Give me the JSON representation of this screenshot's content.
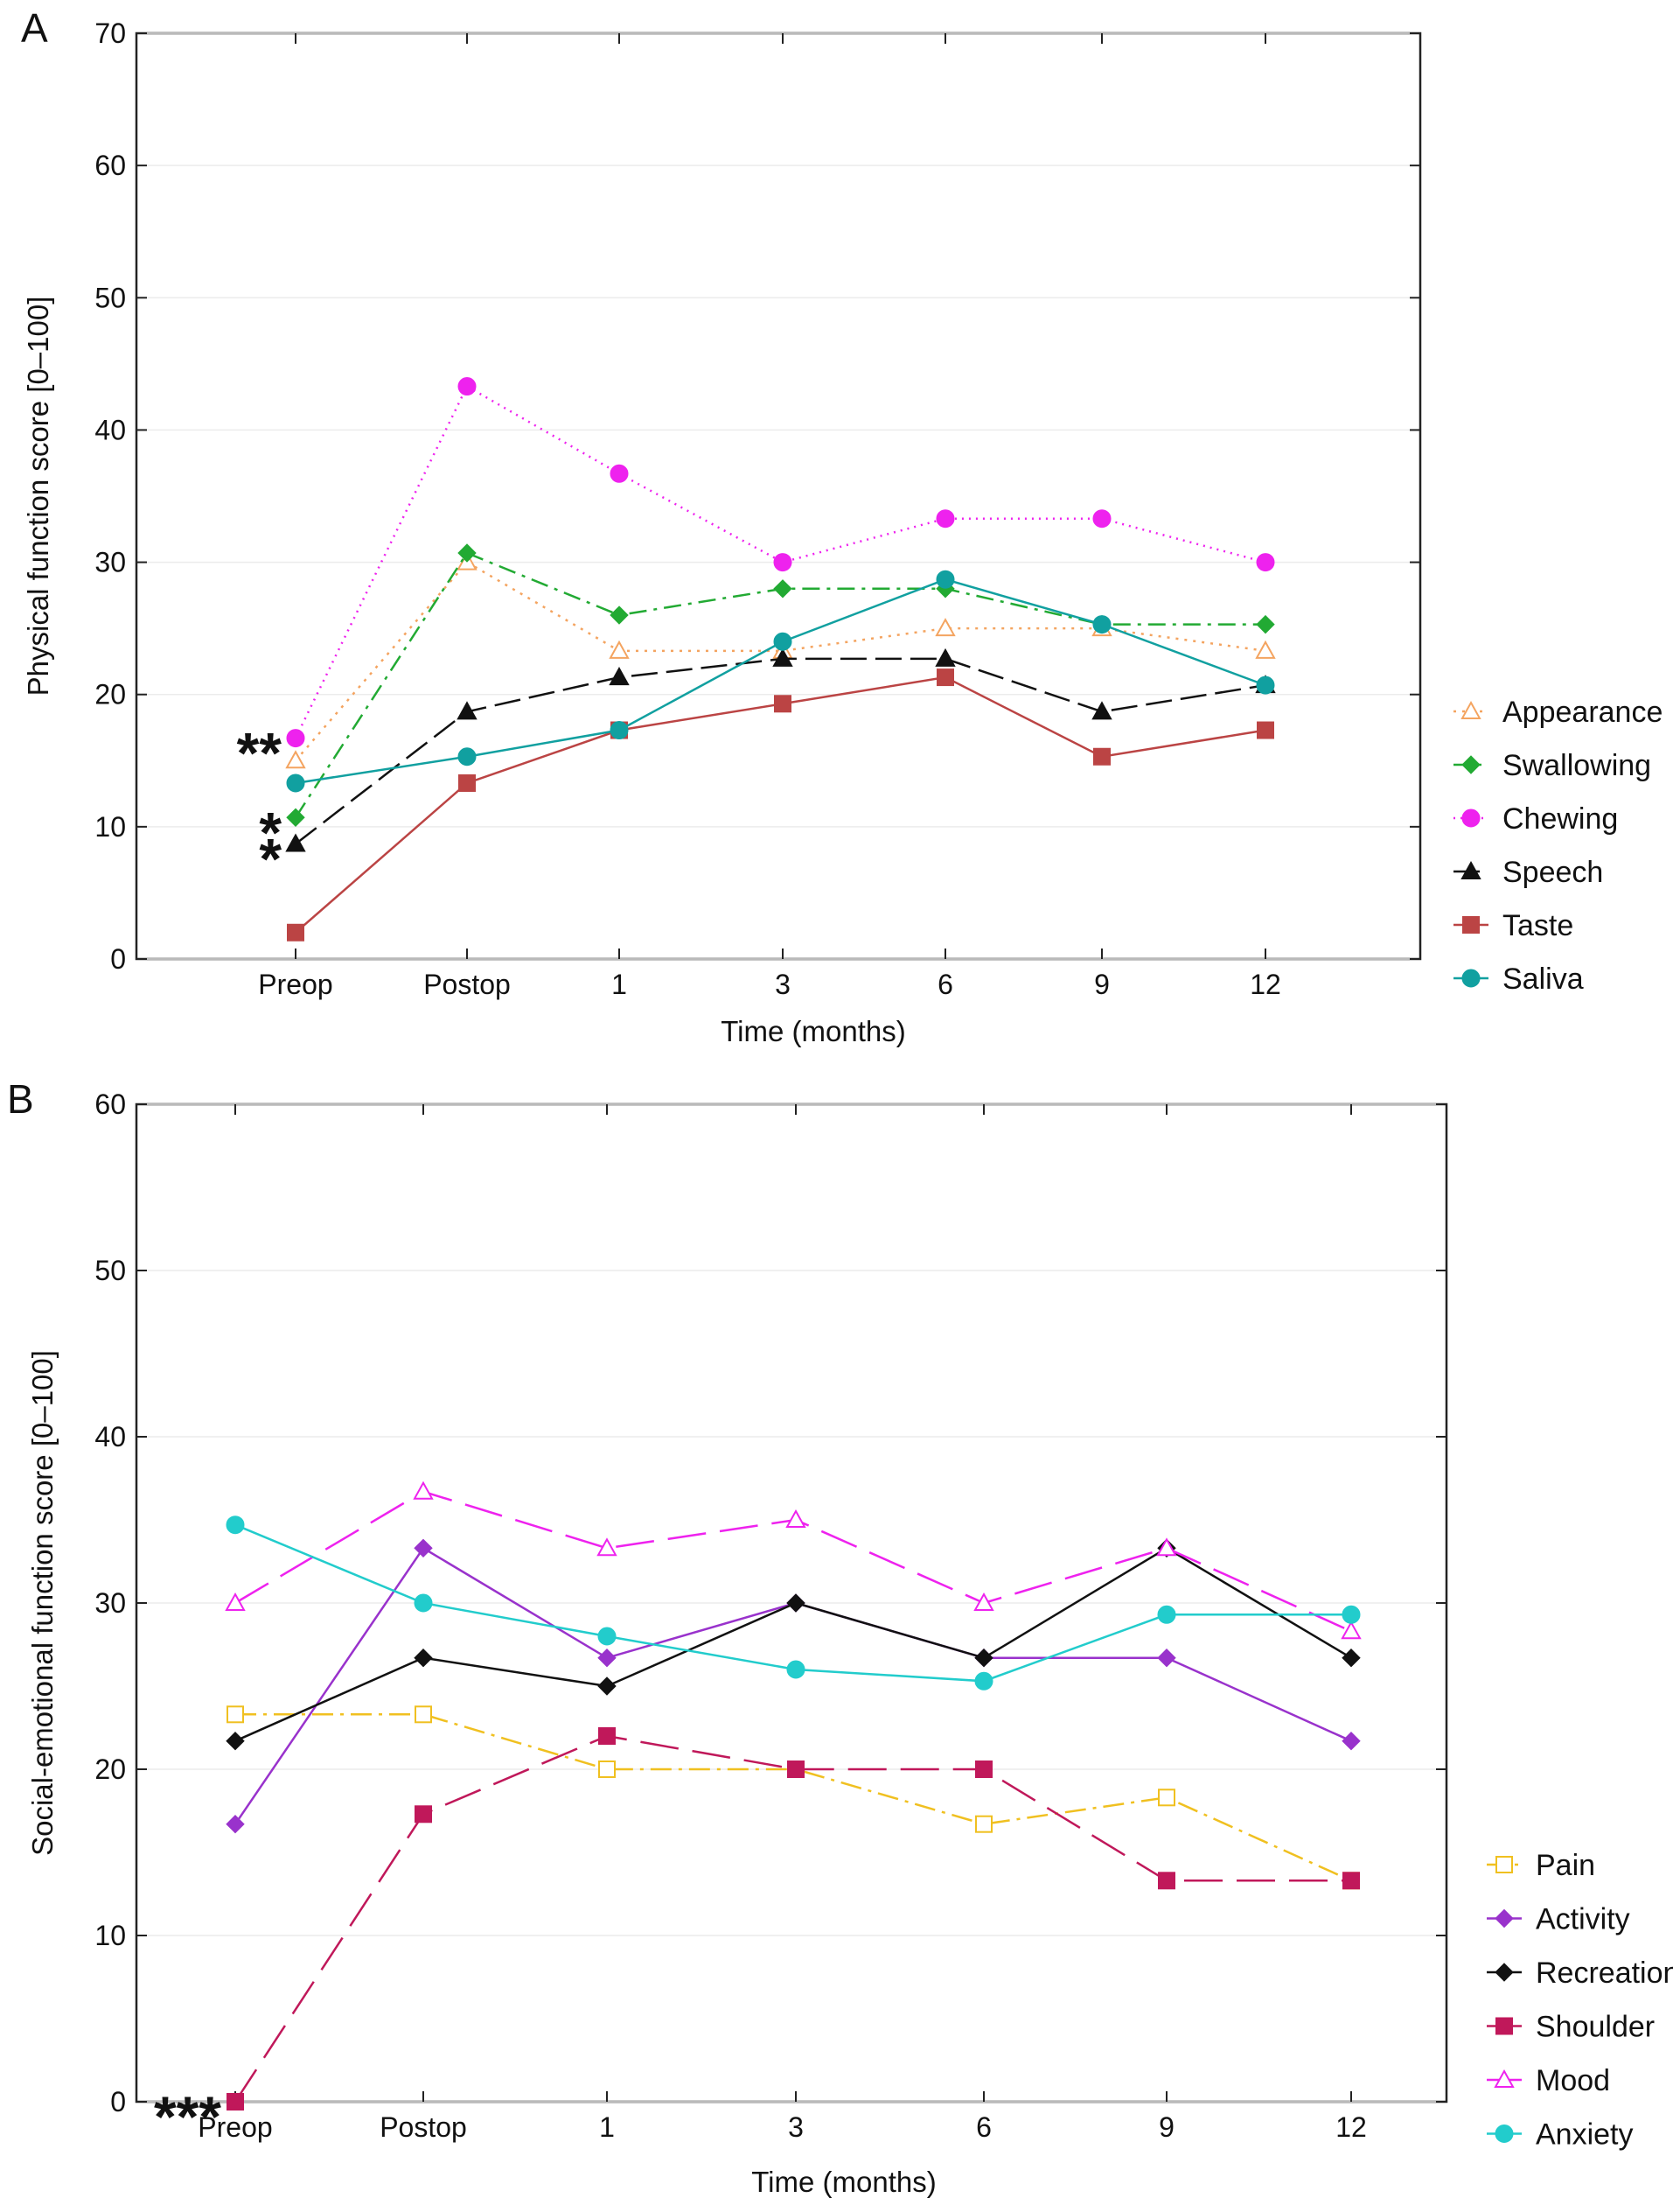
{
  "chart_data": [
    {
      "type": "line",
      "panel_label": "A",
      "title": "",
      "xlabel": "Time (months)",
      "ylabel": "Physical function score [0–100]",
      "categories": [
        "Preop",
        "Postop",
        "1",
        "3",
        "6",
        "9",
        "12"
      ],
      "ylim": [
        0,
        70
      ],
      "yticks": [
        "0",
        "10",
        "20",
        "30",
        "40",
        "50",
        "60",
        "70"
      ],
      "grid": true,
      "legend_position": "right",
      "series": [
        {
          "name": "Appearance",
          "values": [
            15.0,
            30.0,
            23.3,
            23.3,
            25.0,
            25.0,
            23.3
          ],
          "color": "#f4a460",
          "marker": "triangle-open",
          "dash": "3,7"
        },
        {
          "name": "Swallowing",
          "values": [
            10.7,
            30.7,
            26.0,
            28.0,
            28.0,
            25.3,
            25.3
          ],
          "color": "#22aa33",
          "marker": "diamond",
          "dash": "20,8,4,8"
        },
        {
          "name": "Chewing",
          "values": [
            16.7,
            43.3,
            36.7,
            30.0,
            33.3,
            33.3,
            30.0
          ],
          "color": "#ee22ee",
          "marker": "circle",
          "dash": "2,6"
        },
        {
          "name": "Speech",
          "values": [
            8.7,
            18.7,
            21.3,
            22.7,
            22.7,
            18.7,
            20.7
          ],
          "color": "#111111",
          "marker": "triangle",
          "dash": "30,10"
        },
        {
          "name": "Taste",
          "values": [
            2.0,
            13.3,
            17.3,
            19.3,
            21.3,
            15.3,
            17.3
          ],
          "color": "#bb4444",
          "marker": "square",
          "dash": ""
        },
        {
          "name": "Saliva",
          "values": [
            13.3,
            15.3,
            17.3,
            24.0,
            28.7,
            25.3,
            20.7
          ],
          "color": "#11a0a0",
          "marker": "circle",
          "dash": ""
        }
      ],
      "annotations": [
        {
          "text": "**",
          "category": "Preop",
          "value": 16.7
        },
        {
          "text": "*",
          "category": "Preop",
          "value": 10.7
        },
        {
          "text": "*",
          "category": "Preop",
          "value": 8.7
        }
      ]
    },
    {
      "type": "line",
      "panel_label": "B",
      "title": "",
      "xlabel": "Time (months)",
      "ylabel": "Social-emotional function score [0–100]",
      "categories": [
        "Preop",
        "Postop",
        "1",
        "3",
        "6",
        "9",
        "12"
      ],
      "ylim": [
        0,
        60
      ],
      "yticks": [
        "0",
        "10",
        "20",
        "30",
        "40",
        "50",
        "60"
      ],
      "grid": true,
      "legend_position": "right",
      "series": [
        {
          "name": "Pain",
          "values": [
            23.3,
            23.3,
            20.0,
            20.0,
            16.7,
            18.3,
            13.3
          ],
          "color": "#f0c020",
          "marker": "square-open",
          "dash": "24,8,4,8"
        },
        {
          "name": "Activity",
          "values": [
            16.7,
            33.3,
            26.7,
            30.0,
            26.7,
            26.7,
            21.7
          ],
          "color": "#9932cc",
          "marker": "diamond",
          "dash": ""
        },
        {
          "name": "Recreation",
          "values": [
            21.7,
            26.7,
            25.0,
            30.0,
            26.7,
            33.3,
            26.7
          ],
          "color": "#111111",
          "marker": "diamond",
          "dash": ""
        },
        {
          "name": "Shoulder",
          "values": [
            0.0,
            17.3,
            22.0,
            20.0,
            20.0,
            13.3,
            13.3
          ],
          "color": "#c0185a",
          "marker": "square",
          "dash": "44,16"
        },
        {
          "name": "Mood",
          "values": [
            30.0,
            36.7,
            33.3,
            35.0,
            30.0,
            33.3,
            28.3
          ],
          "color": "#ee22ee",
          "marker": "triangle-open",
          "dash": "44,16"
        },
        {
          "name": "Anxiety",
          "values": [
            34.7,
            30.0,
            28.0,
            26.0,
            25.3,
            29.3,
            29.3
          ],
          "color": "#22cccc",
          "marker": "circle",
          "dash": ""
        }
      ],
      "annotations": [
        {
          "text": "***",
          "category": "Preop",
          "value": 0.0
        }
      ]
    }
  ]
}
